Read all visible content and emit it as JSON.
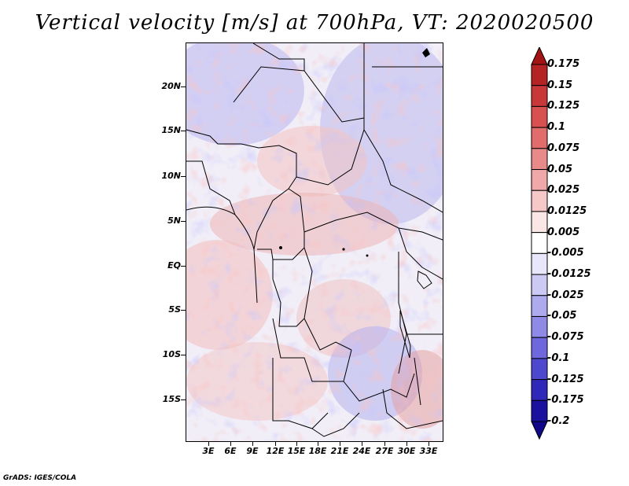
{
  "title": "Vertical velocity [m/s] at 700hPa, VT: 2020020500",
  "credit": "GrADS: IGES/COLA",
  "map": {
    "lat_labels": [
      "20N",
      "15N",
      "10N",
      "5N",
      "EQ",
      "5S",
      "10S",
      "15S"
    ],
    "lon_labels": [
      "3E",
      "6E",
      "9E",
      "12E",
      "15E",
      "18E",
      "21E",
      "24E",
      "27E",
      "30E",
      "33E"
    ]
  },
  "colorbar": {
    "labels": [
      "0.175",
      "0.15",
      "0.125",
      "0.1",
      "0.075",
      "0.05",
      "0.025",
      "0.0125",
      "0.005",
      "-0.005",
      "-0.0125",
      "-0.025",
      "-0.05",
      "-0.075",
      "-0.1",
      "-0.125",
      "-0.175",
      "-0.2"
    ],
    "colors": [
      "#a31414",
      "#b52424",
      "#c83838",
      "#d95050",
      "#e06c6c",
      "#e88a8a",
      "#f0a8a8",
      "#f6c8c8",
      "#fbe6e6",
      "#ffffff",
      "#e8e6fa",
      "#cccaf4",
      "#aeaaee",
      "#8f8ae6",
      "#6e68dc",
      "#4e48ce",
      "#3028b8",
      "#1a129e",
      "#100888"
    ]
  }
}
